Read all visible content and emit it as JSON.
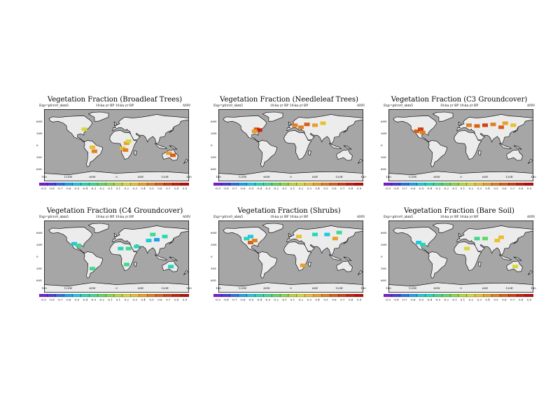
{
  "panels": [
    {
      "title": "Vegetation Fraction (Broadleaf Trees)",
      "subtitle_left": "Exp=pfcrc0_abm5",
      "subtitle_mid": "10:ka yr BP   10:ka yr BP",
      "subtitle_right": "ANN"
    },
    {
      "title": "Vegetation Fraction (Needleleaf Trees)",
      "subtitle_left": "Exp=pfcrc0_abm5",
      "subtitle_mid": "10:ka yr BP   10:ka yr BP",
      "subtitle_right": "ANN"
    },
    {
      "title": "Vegetation Fraction (C3 Groundcover)",
      "subtitle_left": "Exp=pfcrc0_abm5",
      "subtitle_mid": "10:ka yr BP   10:ka yr BP",
      "subtitle_right": "ANN"
    },
    {
      "title": "Vegetation Fraction (C4 Groundcover)",
      "subtitle_left": "Exp=pfcrc0_abm5",
      "subtitle_mid": "10:ka yr BP   10:ka yr BP",
      "subtitle_right": "ANN"
    },
    {
      "title": "Vegetation Fraction (Shrubs)",
      "subtitle_left": "Exp=pfcrc0_abm5",
      "subtitle_mid": "10:ka yr BP   10:ka yr BP",
      "subtitle_right": "ANN"
    },
    {
      "title": "Vegetation Fraction (Bare Soil)",
      "subtitle_left": "Exp=pfcrc0_abm5",
      "subtitle_mid": "10:ka yr BP   10:ka yr BP",
      "subtitle_right": "ANN"
    }
  ],
  "lat_labels": [
    "60N",
    "30N",
    "0",
    "30S",
    "60S"
  ],
  "lon_labels": [
    "180",
    "120W",
    "60W",
    "0",
    "60E",
    "120E",
    "180"
  ],
  "colorbar_labels": [
    "-0.9",
    "-0.8",
    "-0.7",
    "-0.6",
    "-0.5",
    "-0.4",
    "-0.3",
    "-0.2",
    "-0.1",
    "0.1",
    "0.2",
    "0.3",
    "0.4",
    "0.5",
    "0.6",
    "0.7",
    "0.8",
    "0.9"
  ],
  "colorbar_colors": [
    "#7a1fd6",
    "#4b3be0",
    "#2f6fe8",
    "#1fa0ee",
    "#1fc8e0",
    "#23d8b8",
    "#3fd890",
    "#5fd865",
    "#8ad84a",
    "#b8d83c",
    "#d8d838",
    "#e8c030",
    "#e8a028",
    "#e08020",
    "#d86018",
    "#cf4012",
    "#c82010",
    "#b81008"
  ],
  "colors": {
    "ocean": "#a6a6a6",
    "land": "#ececec",
    "coast": "#000000"
  },
  "anomaly_patches": [
    [
      {
        "lon": 15,
        "lat": -8,
        "v": 0.3
      },
      {
        "lon": 22,
        "lat": -12,
        "v": 0.5
      },
      {
        "lon": 25,
        "lat": 5,
        "v": 0.4
      },
      {
        "lon": -60,
        "lat": -5,
        "v": 0.3
      },
      {
        "lon": -55,
        "lat": -15,
        "v": 0.5
      },
      {
        "lon": 130,
        "lat": -20,
        "v": 0.4
      },
      {
        "lon": 140,
        "lat": -25,
        "v": 0.6
      },
      {
        "lon": 30,
        "lat": 10,
        "v": 0.2
      },
      {
        "lon": -80,
        "lat": 40,
        "v": 0.2
      }
    ],
    [
      {
        "lon": -85,
        "lat": 40,
        "v": 0.6
      },
      {
        "lon": -78,
        "lat": 38,
        "v": 0.8
      },
      {
        "lon": -90,
        "lat": 35,
        "v": 0.4
      },
      {
        "lon": 10,
        "lat": 50,
        "v": 0.5
      },
      {
        "lon": 40,
        "lat": 52,
        "v": 0.6
      },
      {
        "lon": 60,
        "lat": 50,
        "v": 0.4
      },
      {
        "lon": 25,
        "lat": 45,
        "v": 0.5
      },
      {
        "lon": 80,
        "lat": 55,
        "v": 0.3
      }
    ],
    [
      {
        "lon": -110,
        "lat": 35,
        "v": 0.6
      },
      {
        "lon": -100,
        "lat": 40,
        "v": 0.7
      },
      {
        "lon": -95,
        "lat": 32,
        "v": 0.5
      },
      {
        "lon": 40,
        "lat": 48,
        "v": 0.6
      },
      {
        "lon": 60,
        "lat": 50,
        "v": 0.7
      },
      {
        "lon": 80,
        "lat": 52,
        "v": 0.5
      },
      {
        "lon": 100,
        "lat": 45,
        "v": 0.6
      },
      {
        "lon": 110,
        "lat": 55,
        "v": 0.4
      },
      {
        "lon": 20,
        "lat": 50,
        "v": 0.5
      },
      {
        "lon": 130,
        "lat": 50,
        "v": 0.3
      }
    ],
    [
      {
        "lon": -105,
        "lat": 32,
        "v": -0.5
      },
      {
        "lon": -95,
        "lat": 28,
        "v": -0.3
      },
      {
        "lon": 10,
        "lat": 20,
        "v": -0.4
      },
      {
        "lon": 30,
        "lat": 20,
        "v": -0.3
      },
      {
        "lon": 50,
        "lat": 25,
        "v": -0.4
      },
      {
        "lon": 80,
        "lat": 40,
        "v": -0.5
      },
      {
        "lon": 100,
        "lat": 42,
        "v": -0.6
      },
      {
        "lon": 120,
        "lat": 50,
        "v": -0.4
      },
      {
        "lon": 135,
        "lat": -25,
        "v": -0.4
      },
      {
        "lon": -60,
        "lat": -30,
        "v": -0.3
      },
      {
        "lon": 25,
        "lat": -20,
        "v": -0.3
      },
      {
        "lon": 90,
        "lat": 55,
        "v": -0.3
      }
    ],
    [
      {
        "lon": -100,
        "lat": 35,
        "v": 0.6
      },
      {
        "lon": -90,
        "lat": 40,
        "v": 0.5
      },
      {
        "lon": -110,
        "lat": 45,
        "v": -0.4
      },
      {
        "lon": -100,
        "lat": 50,
        "v": -0.5
      },
      {
        "lon": 60,
        "lat": 55,
        "v": -0.4
      },
      {
        "lon": 90,
        "lat": 55,
        "v": -0.5
      },
      {
        "lon": 110,
        "lat": 45,
        "v": 0.4
      },
      {
        "lon": 30,
        "lat": -22,
        "v": 0.4
      },
      {
        "lon": 20,
        "lat": 50,
        "v": 0.3
      },
      {
        "lon": 120,
        "lat": 60,
        "v": -0.3
      }
    ],
    [
      {
        "lon": -105,
        "lat": 35,
        "v": -0.5
      },
      {
        "lon": -95,
        "lat": 30,
        "v": -0.4
      },
      {
        "lon": 15,
        "lat": 20,
        "v": 0.2
      },
      {
        "lon": 40,
        "lat": 45,
        "v": -0.3
      },
      {
        "lon": 90,
        "lat": 40,
        "v": 0.3
      },
      {
        "lon": 135,
        "lat": -25,
        "v": 0.2
      },
      {
        "lon": 60,
        "lat": 45,
        "v": -0.2
      },
      {
        "lon": 100,
        "lat": 48,
        "v": 0.3
      }
    ]
  ]
}
